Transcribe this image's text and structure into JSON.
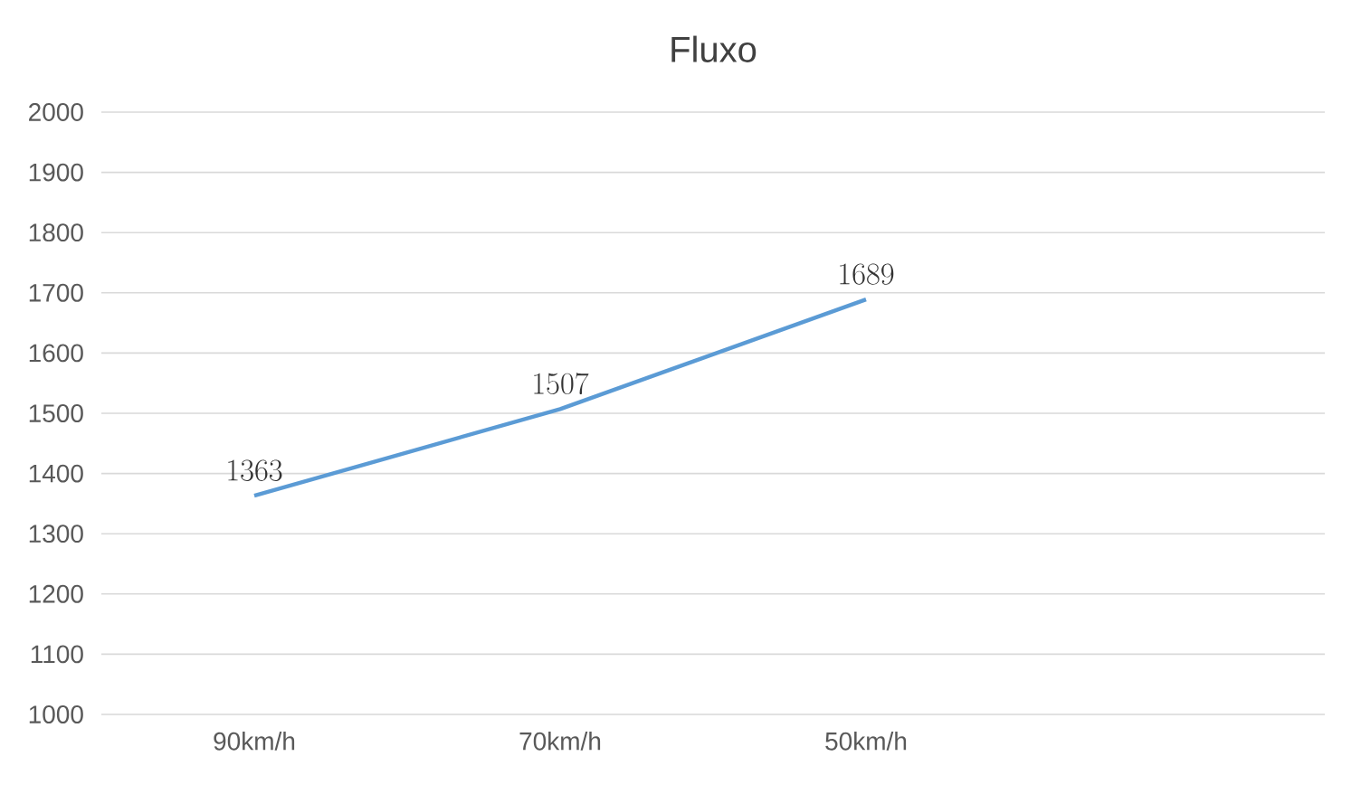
{
  "chart_data": {
    "type": "line",
    "title": "Fluxo",
    "categories": [
      "90km/h",
      "70km/h",
      "50km/h",
      null
    ],
    "values": [
      1363,
      1507,
      1689,
      null
    ],
    "color": "#5b9bd5",
    "ylim": [
      1000,
      2000
    ],
    "yticks": [
      1000,
      1100,
      1200,
      1300,
      1400,
      1500,
      1600,
      1700,
      1800,
      1900,
      2000
    ],
    "grid": "y",
    "data_labels": true,
    "legend": false,
    "marker": "none",
    "line_style": "solid"
  }
}
